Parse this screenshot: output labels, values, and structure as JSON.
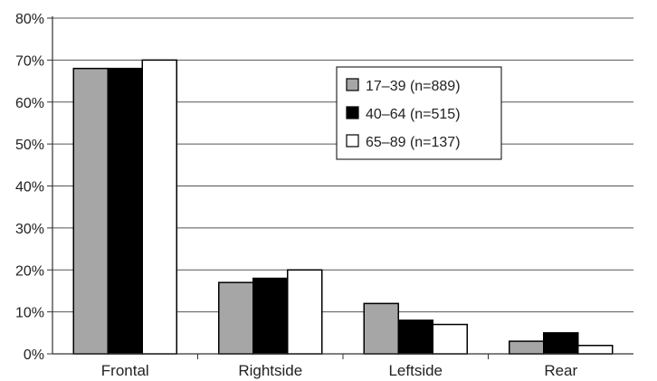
{
  "chart_data": {
    "type": "bar",
    "categories": [
      "Frontal",
      "Rightside",
      "Leftside",
      "Rear"
    ],
    "series": [
      {
        "name": "17–39 (n=889)",
        "values": [
          68,
          17,
          12,
          3
        ],
        "color": "#a6a6a6"
      },
      {
        "name": "40–64 (n=515)",
        "values": [
          68,
          18,
          8,
          5
        ],
        "color": "#000000"
      },
      {
        "name": "65–89 (n=137)",
        "values": [
          70,
          20,
          7,
          2
        ],
        "color": "#ffffff"
      }
    ],
    "y_ticks": [
      "0%",
      "10%",
      "20%",
      "30%",
      "40%",
      "50%",
      "60%",
      "70%",
      "80%"
    ],
    "ylim": [
      0,
      80
    ],
    "y_unit": "%",
    "grid": true,
    "legend_position": "top-right",
    "title": "",
    "xlabel": "",
    "ylabel": ""
  }
}
